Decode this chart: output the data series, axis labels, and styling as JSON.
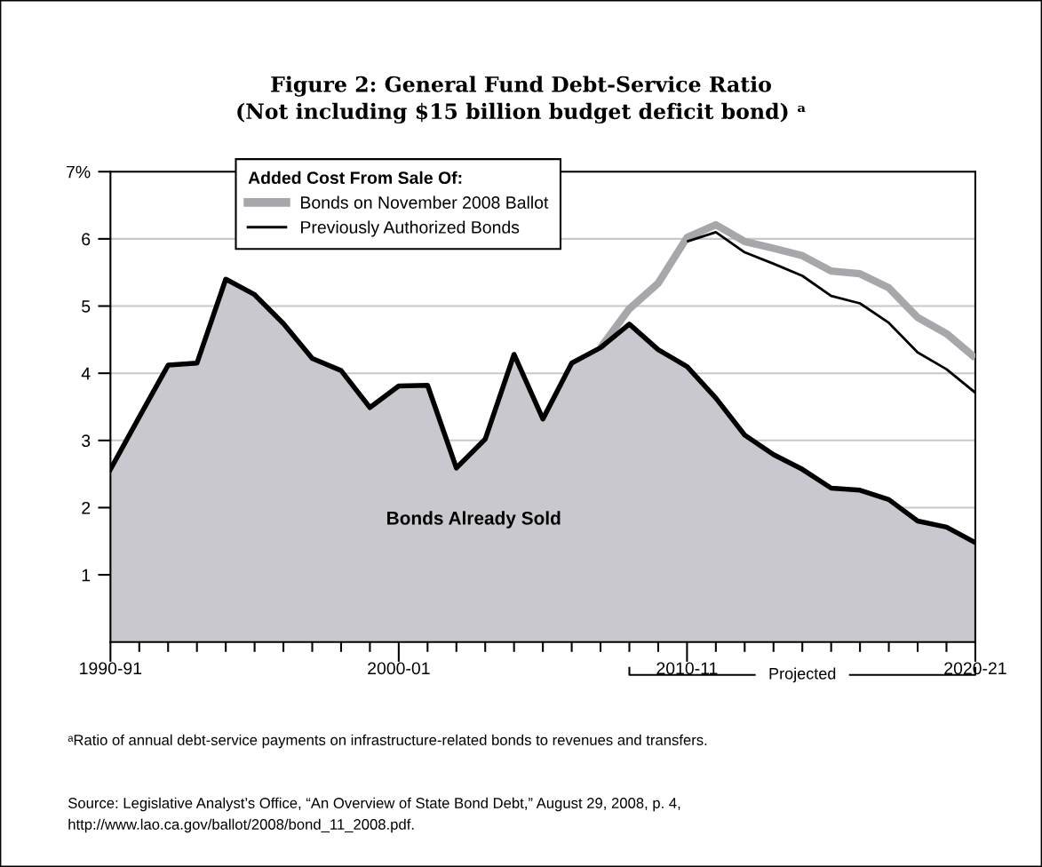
{
  "chart_data": {
    "type": "line",
    "title": "Figure 2: General Fund Debt-Service Ratio\n(Not including $15 billion budget deficit bond) ᵃ",
    "categories": [
      "1990-91",
      null,
      null,
      null,
      null,
      null,
      null,
      null,
      null,
      null,
      "2000-01",
      null,
      null,
      null,
      null,
      null,
      null,
      null,
      null,
      null,
      "2010-11",
      null,
      null,
      null,
      null,
      null,
      null,
      null,
      null,
      null,
      "2020-21"
    ],
    "series": [
      {
        "name": "Bonds Already Sold",
        "type": "area",
        "color": "#c9c8ce",
        "values": [
          2.57,
          3.35,
          4.12,
          4.15,
          5.4,
          5.17,
          4.74,
          4.22,
          4.04,
          3.49,
          3.81,
          3.82,
          2.59,
          3.02,
          4.28,
          3.32,
          4.15,
          4.38,
          4.73,
          4.35,
          4.1,
          3.63,
          3.08,
          2.79,
          2.57,
          2.29,
          2.26,
          2.12,
          1.8,
          1.71,
          1.48
        ]
      },
      {
        "name": "Bonds on November 2008 Ballot",
        "color": "#a7a7ab",
        "values": [
          null,
          null,
          null,
          null,
          null,
          null,
          null,
          null,
          null,
          null,
          null,
          null,
          null,
          null,
          null,
          null,
          null,
          4.38,
          4.96,
          5.34,
          6.02,
          6.21,
          5.96,
          5.86,
          5.75,
          5.52,
          5.48,
          5.27,
          4.83,
          4.59,
          4.23
        ]
      },
      {
        "name": "Previously Authorized Bonds",
        "color": "#000000",
        "values": [
          null,
          null,
          null,
          null,
          null,
          null,
          null,
          null,
          null,
          null,
          null,
          null,
          null,
          null,
          null,
          null,
          null,
          null,
          null,
          null,
          5.96,
          6.1,
          5.8,
          5.63,
          5.45,
          5.15,
          5.04,
          4.75,
          4.31,
          4.06,
          3.71
        ]
      }
    ],
    "ylim": [
      0,
      7
    ],
    "yticks": [
      1,
      2,
      3,
      4,
      5,
      6,
      {
        "value": 7,
        "label": "7%"
      }
    ],
    "grid": "y",
    "legend": "top left",
    "legend_title": "Added Cost From Sale Of:",
    "annotations": [
      "Projected",
      "ᵃRatio of annual debt-service payments on infrastructure-related bonds to revenues and transfers.",
      "Source: Legislative Analyst’s Office, “An Overview of State Bond Debt,” August 29, 2008, p. 4,\nhttp://www.lao.ca.gov/ballot/2008/bond_11_2008.pdf."
    ]
  }
}
